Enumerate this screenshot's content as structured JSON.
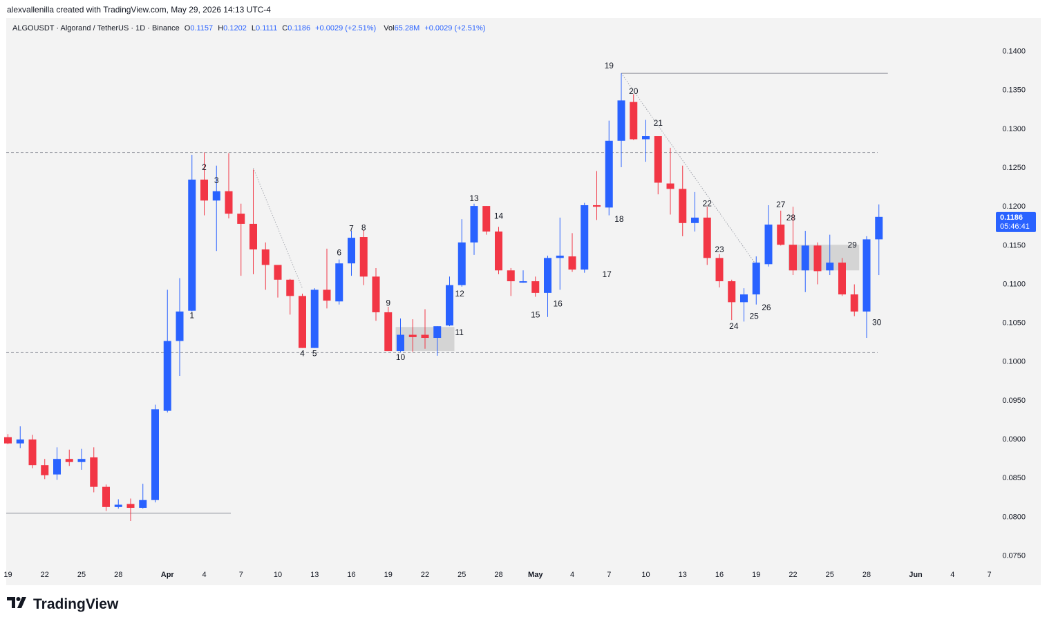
{
  "header": {
    "caption": "alexvallenilla created with TradingView.com, May 29, 2026 14:13 UTC-4"
  },
  "legend": {
    "symbol": "ALGOUSDT · Algorand / TetherUS · 1D · Binance",
    "o_label": "O",
    "o_value": "0.1157",
    "h_label": "H",
    "h_value": "0.1202",
    "l_label": "L",
    "l_value": "0.1111",
    "c_label": "C",
    "c_value": "0.1186",
    "change": "+0.0029 (+2.51%)",
    "vol_label": "Vol",
    "vol_value": "65.28M",
    "vol_change": "+0.0029 (+2.51%)"
  },
  "price_label": {
    "price": "0.1186",
    "countdown": "05:46:41",
    "color": "#2962ff"
  },
  "branding": {
    "logo_text": "TradingView",
    "logo_icon": "tradingview-logo-icon"
  },
  "chart_data": {
    "type": "candlestick",
    "colors": {
      "up": "#2962ff",
      "down": "#f23645",
      "grid_line": "#9598a1"
    },
    "y_ticks": [
      "0.1400",
      "0.1350",
      "0.1300",
      "0.1250",
      "0.1200",
      "0.1150",
      "0.1100",
      "0.1050",
      "0.1000",
      "0.0950",
      "0.0900",
      "0.0850",
      "0.0800",
      "0.0750"
    ],
    "ylim": [
      0.0745,
      0.1425
    ],
    "x_ticks": [
      {
        "label": "19",
        "date": "2026-03-19"
      },
      {
        "label": "22",
        "date": "2026-03-22"
      },
      {
        "label": "25",
        "date": "2026-03-25"
      },
      {
        "label": "28",
        "date": "2026-03-28"
      },
      {
        "label": "Apr",
        "date": "2026-04-01"
      },
      {
        "label": "4",
        "date": "2026-04-04"
      },
      {
        "label": "7",
        "date": "2026-04-07"
      },
      {
        "label": "10",
        "date": "2026-04-10"
      },
      {
        "label": "13",
        "date": "2026-04-13"
      },
      {
        "label": "16",
        "date": "2026-04-16"
      },
      {
        "label": "19",
        "date": "2026-04-19"
      },
      {
        "label": "22",
        "date": "2026-04-22"
      },
      {
        "label": "25",
        "date": "2026-04-25"
      },
      {
        "label": "28",
        "date": "2026-04-28"
      },
      {
        "label": "May",
        "date": "2026-05-01"
      },
      {
        "label": "4",
        "date": "2026-05-04"
      },
      {
        "label": "7",
        "date": "2026-05-07"
      },
      {
        "label": "10",
        "date": "2026-05-10"
      },
      {
        "label": "13",
        "date": "2026-05-13"
      },
      {
        "label": "16",
        "date": "2026-05-16"
      },
      {
        "label": "19",
        "date": "2026-05-19"
      },
      {
        "label": "22",
        "date": "2026-05-22"
      },
      {
        "label": "25",
        "date": "2026-05-25"
      },
      {
        "label": "28",
        "date": "2026-05-28"
      },
      {
        "label": "Jun",
        "date": "2026-06-01"
      },
      {
        "label": "4",
        "date": "2026-06-04"
      },
      {
        "label": "7",
        "date": "2026-06-07"
      }
    ],
    "candles": [
      {
        "date": "2026-03-19",
        "o": 0.0902,
        "h": 0.0906,
        "l": 0.0893,
        "c": 0.0894
      },
      {
        "date": "2026-03-20",
        "o": 0.0894,
        "h": 0.0916,
        "l": 0.0888,
        "c": 0.0899
      },
      {
        "date": "2026-03-21",
        "o": 0.0899,
        "h": 0.0905,
        "l": 0.0862,
        "c": 0.0866
      },
      {
        "date": "2026-03-22",
        "o": 0.0866,
        "h": 0.0874,
        "l": 0.0848,
        "c": 0.0853
      },
      {
        "date": "2026-03-23",
        "o": 0.0854,
        "h": 0.0889,
        "l": 0.0847,
        "c": 0.0874
      },
      {
        "date": "2026-03-24",
        "o": 0.0874,
        "h": 0.0886,
        "l": 0.0865,
        "c": 0.087
      },
      {
        "date": "2026-03-25",
        "o": 0.087,
        "h": 0.0887,
        "l": 0.086,
        "c": 0.0874
      },
      {
        "date": "2026-03-26",
        "o": 0.0876,
        "h": 0.0889,
        "l": 0.0831,
        "c": 0.0838
      },
      {
        "date": "2026-03-27",
        "o": 0.0838,
        "h": 0.0841,
        "l": 0.0807,
        "c": 0.0812
      },
      {
        "date": "2026-03-28",
        "o": 0.0812,
        "h": 0.0822,
        "l": 0.081,
        "c": 0.0815
      },
      {
        "date": "2026-03-29",
        "o": 0.0816,
        "h": 0.0823,
        "l": 0.0794,
        "c": 0.0811
      },
      {
        "date": "2026-03-30",
        "o": 0.0811,
        "h": 0.0842,
        "l": 0.081,
        "c": 0.0821
      },
      {
        "date": "2026-03-31",
        "o": 0.0821,
        "h": 0.0944,
        "l": 0.0818,
        "c": 0.0938
      },
      {
        "date": "2026-04-01",
        "o": 0.0936,
        "h": 0.1092,
        "l": 0.0934,
        "c": 0.1026
      },
      {
        "date": "2026-04-02",
        "o": 0.1026,
        "h": 0.1107,
        "l": 0.0981,
        "c": 0.1064
      },
      {
        "date": "2026-04-03",
        "o": 0.1065,
        "h": 0.1266,
        "l": 0.1064,
        "c": 0.1234
      },
      {
        "date": "2026-04-04",
        "o": 0.1234,
        "h": 0.1269,
        "l": 0.1188,
        "c": 0.1207
      },
      {
        "date": "2026-04-05",
        "o": 0.1207,
        "h": 0.1252,
        "l": 0.1142,
        "c": 0.1219
      },
      {
        "date": "2026-04-06",
        "o": 0.1219,
        "h": 0.1268,
        "l": 0.1184,
        "c": 0.119
      },
      {
        "date": "2026-04-07",
        "o": 0.119,
        "h": 0.1203,
        "l": 0.111,
        "c": 0.1177
      },
      {
        "date": "2026-04-08",
        "o": 0.1177,
        "h": 0.1247,
        "l": 0.1112,
        "c": 0.1144
      },
      {
        "date": "2026-04-09",
        "o": 0.1144,
        "h": 0.1153,
        "l": 0.1092,
        "c": 0.1124
      },
      {
        "date": "2026-04-10",
        "o": 0.1124,
        "h": 0.112,
        "l": 0.1082,
        "c": 0.1105
      },
      {
        "date": "2026-04-11",
        "o": 0.1105,
        "h": 0.1106,
        "l": 0.106,
        "c": 0.1084
      },
      {
        "date": "2026-04-12",
        "o": 0.1084,
        "h": 0.1087,
        "l": 0.1017,
        "c": 0.1017
      },
      {
        "date": "2026-04-13",
        "o": 0.1017,
        "h": 0.1094,
        "l": 0.1017,
        "c": 0.1092
      },
      {
        "date": "2026-04-14",
        "o": 0.1092,
        "h": 0.1145,
        "l": 0.1068,
        "c": 0.1078
      },
      {
        "date": "2026-04-15",
        "o": 0.1077,
        "h": 0.1131,
        "l": 0.1073,
        "c": 0.1126
      },
      {
        "date": "2026-04-16",
        "o": 0.1126,
        "h": 0.1168,
        "l": 0.111,
        "c": 0.1159
      },
      {
        "date": "2026-04-17",
        "o": 0.116,
        "h": 0.1169,
        "l": 0.1098,
        "c": 0.1109
      },
      {
        "date": "2026-04-18",
        "o": 0.1109,
        "h": 0.112,
        "l": 0.1052,
        "c": 0.1063
      },
      {
        "date": "2026-04-19",
        "o": 0.1063,
        "h": 0.107,
        "l": 0.1013,
        "c": 0.1013
      },
      {
        "date": "2026-04-20",
        "o": 0.1013,
        "h": 0.1055,
        "l": 0.1012,
        "c": 0.1034
      },
      {
        "date": "2026-04-21",
        "o": 0.1034,
        "h": 0.1054,
        "l": 0.1012,
        "c": 0.1031
      },
      {
        "date": "2026-04-22",
        "o": 0.1034,
        "h": 0.1067,
        "l": 0.1016,
        "c": 0.103
      },
      {
        "date": "2026-04-23",
        "o": 0.103,
        "h": 0.1045,
        "l": 0.1007,
        "c": 0.1045
      },
      {
        "date": "2026-04-24",
        "o": 0.1046,
        "h": 0.1109,
        "l": 0.1045,
        "c": 0.1098
      },
      {
        "date": "2026-04-25",
        "o": 0.1098,
        "h": 0.1183,
        "l": 0.1096,
        "c": 0.1153
      },
      {
        "date": "2026-04-26",
        "o": 0.1153,
        "h": 0.1203,
        "l": 0.1137,
        "c": 0.12
      },
      {
        "date": "2026-04-27",
        "o": 0.12,
        "h": 0.12,
        "l": 0.1163,
        "c": 0.1167
      },
      {
        "date": "2026-04-28",
        "o": 0.1167,
        "h": 0.1173,
        "l": 0.1112,
        "c": 0.1117
      },
      {
        "date": "2026-04-29",
        "o": 0.1117,
        "h": 0.112,
        "l": 0.1084,
        "c": 0.1103
      },
      {
        "date": "2026-04-30",
        "o": 0.1103,
        "h": 0.1117,
        "l": 0.1101,
        "c": 0.1103
      },
      {
        "date": "2026-05-01",
        "o": 0.1103,
        "h": 0.1109,
        "l": 0.1083,
        "c": 0.1088
      },
      {
        "date": "2026-05-02",
        "o": 0.1088,
        "h": 0.1136,
        "l": 0.1057,
        "c": 0.1133
      },
      {
        "date": "2026-05-03",
        "o": 0.1133,
        "h": 0.1185,
        "l": 0.1092,
        "c": 0.1136
      },
      {
        "date": "2026-05-04",
        "o": 0.1135,
        "h": 0.1165,
        "l": 0.1115,
        "c": 0.1118
      },
      {
        "date": "2026-05-05",
        "o": 0.1118,
        "h": 0.1204,
        "l": 0.1114,
        "c": 0.1201
      },
      {
        "date": "2026-05-06",
        "o": 0.1201,
        "h": 0.1245,
        "l": 0.1182,
        "c": 0.1199
      },
      {
        "date": "2026-05-07",
        "o": 0.1198,
        "h": 0.131,
        "l": 0.1188,
        "c": 0.1284
      },
      {
        "date": "2026-05-08",
        "o": 0.1284,
        "h": 0.1371,
        "l": 0.125,
        "c": 0.1336
      },
      {
        "date": "2026-05-09",
        "o": 0.1334,
        "h": 0.1344,
        "l": 0.1285,
        "c": 0.1286
      },
      {
        "date": "2026-05-10",
        "o": 0.1286,
        "h": 0.1311,
        "l": 0.1257,
        "c": 0.129
      },
      {
        "date": "2026-05-11",
        "o": 0.129,
        "h": 0.1289,
        "l": 0.1215,
        "c": 0.123
      },
      {
        "date": "2026-05-12",
        "o": 0.1229,
        "h": 0.1275,
        "l": 0.1189,
        "c": 0.1222
      },
      {
        "date": "2026-05-13",
        "o": 0.1222,
        "h": 0.1252,
        "l": 0.1161,
        "c": 0.1178
      },
      {
        "date": "2026-05-14",
        "o": 0.1178,
        "h": 0.1218,
        "l": 0.1167,
        "c": 0.1185
      },
      {
        "date": "2026-05-15",
        "o": 0.1185,
        "h": 0.1199,
        "l": 0.1124,
        "c": 0.1133
      },
      {
        "date": "2026-05-16",
        "o": 0.1133,
        "h": 0.1138,
        "l": 0.1095,
        "c": 0.1103
      },
      {
        "date": "2026-05-17",
        "o": 0.1103,
        "h": 0.1105,
        "l": 0.1053,
        "c": 0.1076
      },
      {
        "date": "2026-05-18",
        "o": 0.1076,
        "h": 0.1094,
        "l": 0.1051,
        "c": 0.1086
      },
      {
        "date": "2026-05-19",
        "o": 0.1086,
        "h": 0.1135,
        "l": 0.1073,
        "c": 0.1127
      },
      {
        "date": "2026-05-20",
        "o": 0.1125,
        "h": 0.1201,
        "l": 0.1122,
        "c": 0.1176
      },
      {
        "date": "2026-05-21",
        "o": 0.1176,
        "h": 0.1194,
        "l": 0.1149,
        "c": 0.115
      },
      {
        "date": "2026-05-22",
        "o": 0.115,
        "h": 0.1199,
        "l": 0.1111,
        "c": 0.1117
      },
      {
        "date": "2026-05-23",
        "o": 0.1117,
        "h": 0.1168,
        "l": 0.1089,
        "c": 0.1149
      },
      {
        "date": "2026-05-24",
        "o": 0.1149,
        "h": 0.1153,
        "l": 0.1099,
        "c": 0.1116
      },
      {
        "date": "2026-05-25",
        "o": 0.1117,
        "h": 0.1163,
        "l": 0.1111,
        "c": 0.1127
      },
      {
        "date": "2026-05-26",
        "o": 0.1127,
        "h": 0.1133,
        "l": 0.1084,
        "c": 0.1086
      },
      {
        "date": "2026-05-27",
        "o": 0.1086,
        "h": 0.1099,
        "l": 0.1058,
        "c": 0.1064
      },
      {
        "date": "2026-05-28",
        "o": 0.1064,
        "h": 0.1161,
        "l": 0.103,
        "c": 0.1157
      },
      {
        "date": "2026-05-29",
        "o": 0.1157,
        "h": 0.1202,
        "l": 0.1111,
        "c": 0.1186
      }
    ],
    "swing_counts": [
      {
        "label": "1",
        "date": "2026-04-03",
        "price": 0.1059,
        "pos": "below"
      },
      {
        "label": "2",
        "date": "2026-04-04",
        "price": 0.125,
        "pos": "above"
      },
      {
        "label": "3",
        "date": "2026-04-05",
        "price": 0.1233,
        "pos": "above"
      },
      {
        "label": "4",
        "date": "2026-04-12",
        "price": 0.101,
        "pos": "below"
      },
      {
        "label": "5",
        "date": "2026-04-13",
        "price": 0.101,
        "pos": "below"
      },
      {
        "label": "6",
        "date": "2026-04-15",
        "price": 0.114,
        "pos": "above"
      },
      {
        "label": "7",
        "date": "2026-04-16",
        "price": 0.1171,
        "pos": "above"
      },
      {
        "label": "8",
        "date": "2026-04-17",
        "price": 0.1172,
        "pos": "above"
      },
      {
        "label": "9",
        "date": "2026-04-19",
        "price": 0.1075,
        "pos": "above"
      },
      {
        "label": "10",
        "date": "2026-04-20",
        "price": 0.1005,
        "pos": "below"
      },
      {
        "label": "11",
        "date": "2026-04-24",
        "price": 0.1037,
        "pos": "right"
      },
      {
        "label": "12",
        "date": "2026-04-24",
        "price": 0.1087,
        "pos": "right"
      },
      {
        "label": "13",
        "date": "2026-04-26",
        "price": 0.121,
        "pos": "above"
      },
      {
        "label": "14",
        "date": "2026-04-28",
        "price": 0.1187,
        "pos": "above"
      },
      {
        "label": "15",
        "date": "2026-05-01",
        "price": 0.106,
        "pos": "below"
      },
      {
        "label": "16",
        "date": "2026-05-02",
        "price": 0.1074,
        "pos": "right"
      },
      {
        "label": "17",
        "date": "2026-05-06",
        "price": 0.1112,
        "pos": "right"
      },
      {
        "label": "18",
        "date": "2026-05-07",
        "price": 0.1183,
        "pos": "right"
      },
      {
        "label": "19",
        "date": "2026-05-07",
        "price": 0.1381,
        "pos": "above"
      },
      {
        "label": "20",
        "date": "2026-05-09",
        "price": 0.1348,
        "pos": "above"
      },
      {
        "label": "21",
        "date": "2026-05-11",
        "price": 0.1307,
        "pos": "above"
      },
      {
        "label": "22",
        "date": "2026-05-15",
        "price": 0.1203,
        "pos": "above"
      },
      {
        "label": "23",
        "date": "2026-05-16",
        "price": 0.1144,
        "pos": "above"
      },
      {
        "label": "24",
        "date": "2026-05-18",
        "price": 0.1045,
        "pos": "left"
      },
      {
        "label": "25",
        "date": "2026-05-18",
        "price": 0.1058,
        "pos": "right"
      },
      {
        "label": "26",
        "date": "2026-05-19",
        "price": 0.1069,
        "pos": "right"
      },
      {
        "label": "27",
        "date": "2026-05-21",
        "price": 0.1202,
        "pos": "above"
      },
      {
        "label": "28",
        "date": "2026-05-21",
        "price": 0.1185,
        "pos": "right"
      },
      {
        "label": "29",
        "date": "2026-05-26",
        "price": 0.115,
        "pos": "right"
      },
      {
        "label": "30",
        "date": "2026-05-28",
        "price": 0.105,
        "pos": "right"
      }
    ],
    "horizontal_lines": [
      {
        "price": 0.1269,
        "style": "dashed",
        "from": "start",
        "to": "end"
      },
      {
        "price": 0.1011,
        "style": "dashed",
        "from": "start",
        "to": "end"
      },
      {
        "price": 0.1371,
        "style": "solid",
        "from": "2026-05-08",
        "to": "2026-05-29"
      },
      {
        "price": 0.0804,
        "style": "solid",
        "from": "start",
        "to": "2026-04-06"
      }
    ],
    "trend_lines": [
      {
        "from": {
          "date": "2026-04-08",
          "price": 0.1249
        },
        "to": {
          "date": "2026-04-12",
          "price": 0.1094
        }
      },
      {
        "from": {
          "date": "2026-05-08",
          "price": 0.1371
        },
        "to": {
          "date": "2026-05-19",
          "price": 0.1124
        }
      }
    ],
    "zones": [
      {
        "from": "2026-04-20",
        "to": "2026-04-24",
        "top": 0.1044,
        "bottom": 0.1013
      },
      {
        "from": "2026-05-22",
        "to": "2026-05-27",
        "top": 0.115,
        "bottom": 0.1117
      }
    ],
    "last_price": 0.1186
  }
}
